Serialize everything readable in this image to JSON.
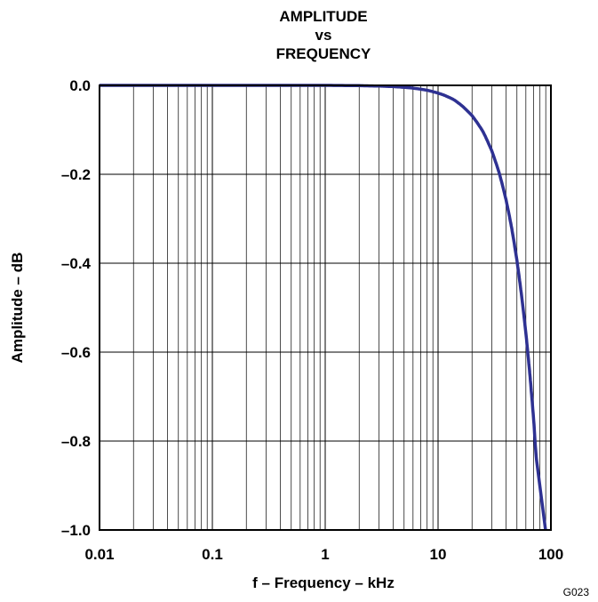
{
  "chart_data": {
    "type": "line",
    "title_lines": [
      "AMPLITUDE",
      "vs",
      "FREQUENCY"
    ],
    "xlabel": "f – Frequency – kHz",
    "ylabel": "Amplitude – dB",
    "xscale": "log",
    "xlim": [
      0.01,
      100
    ],
    "ylim": [
      -1.0,
      0.0
    ],
    "x_ticks": [
      0.01,
      0.1,
      1,
      10,
      100
    ],
    "x_tick_labels": [
      "0.01",
      "0.1",
      "1",
      "10",
      "100"
    ],
    "y_ticks": [
      0.0,
      -0.2,
      -0.4,
      -0.6,
      -0.8,
      -1.0
    ],
    "y_tick_labels": [
      "0.0",
      "–0.2",
      "–0.4",
      "–0.6",
      "–0.8",
      "–1.0"
    ],
    "grid": true,
    "line_color": "#2e3192",
    "series": [
      {
        "x": [
          0.01,
          0.1,
          1,
          2,
          3,
          4,
          5,
          6,
          8,
          10,
          12,
          15,
          20,
          25,
          30,
          35,
          40,
          45,
          50,
          55,
          60,
          65,
          70,
          75
        ],
        "y": [
          0.0,
          0.0,
          0.0,
          -0.0007,
          -0.0016,
          -0.0028,
          -0.0044,
          -0.0063,
          -0.011,
          -0.0174,
          -0.025,
          -0.039,
          -0.068,
          -0.104,
          -0.148,
          -0.199,
          -0.257,
          -0.322,
          -0.394,
          -0.473,
          -0.557,
          -0.648,
          -0.745,
          -0.847
        ]
      }
    ],
    "corner_code": "G023"
  }
}
